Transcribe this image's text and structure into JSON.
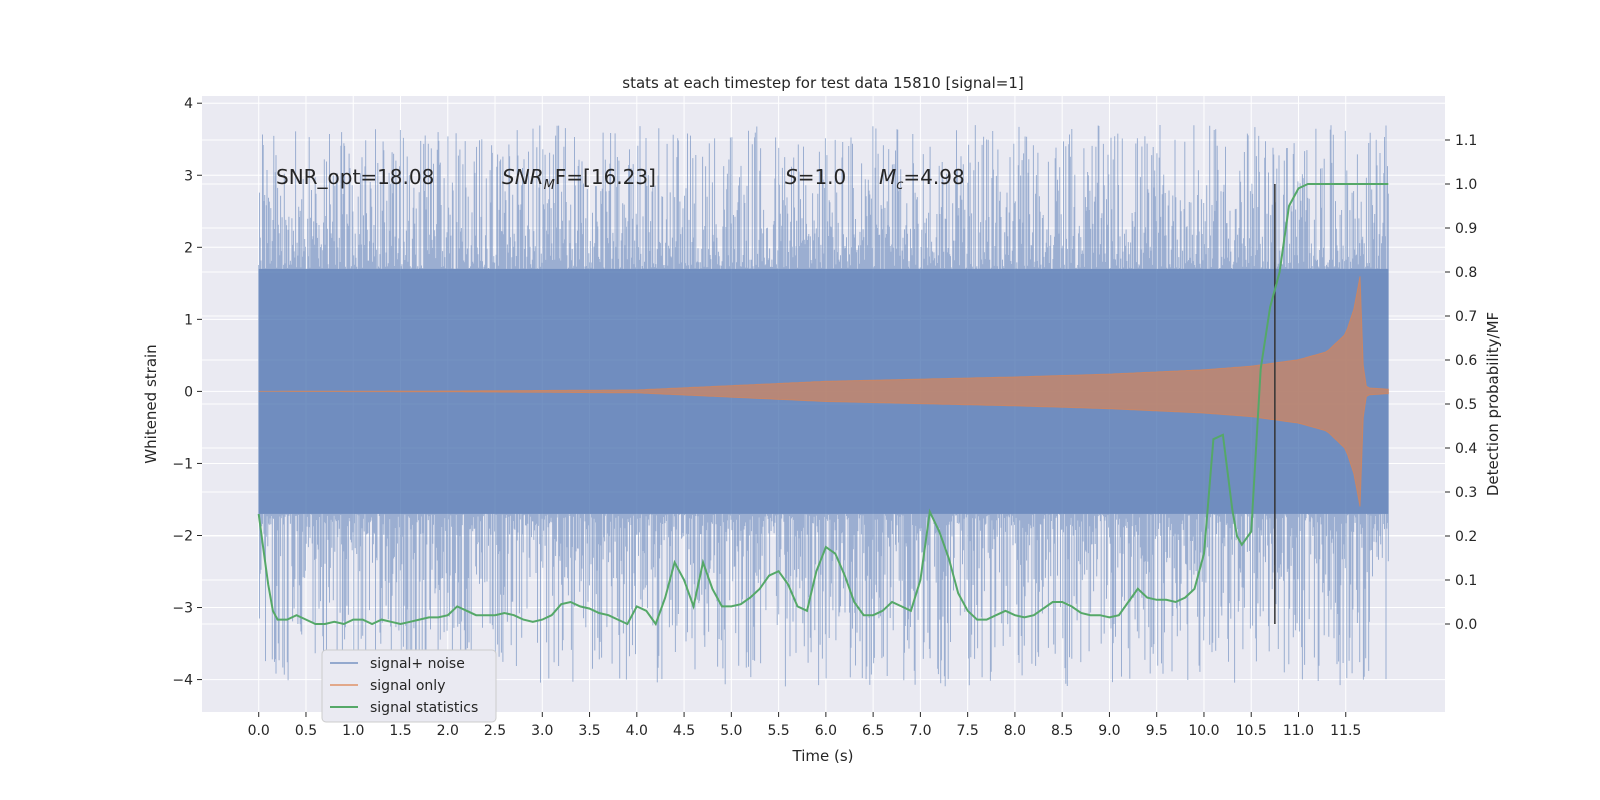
{
  "chart_data": {
    "type": "line",
    "title": "stats at each timestep for test data 15810 [signal=1]",
    "xlabel": "Time (s)",
    "ylabel": "Whitened strain",
    "ylabel_right": "Detection probability/MF",
    "xlim": [
      -0.6,
      12.55
    ],
    "ylim": [
      -4.45,
      4.1
    ],
    "ylim_right": [
      -0.2,
      1.2
    ],
    "x_ticks": [
      0.0,
      0.5,
      1.0,
      1.5,
      2.0,
      2.5,
      3.0,
      3.5,
      4.0,
      4.5,
      5.0,
      5.5,
      6.0,
      6.5,
      7.0,
      7.5,
      8.0,
      8.5,
      9.0,
      9.5,
      10.0,
      10.5,
      11.0,
      11.5
    ],
    "x_tick_labels": [
      "0.0",
      "0.5",
      "1.0",
      "1.5",
      "2.0",
      "2.5",
      "3.0",
      "3.5",
      "4.0",
      "4.5",
      "5.0",
      "5.5",
      "6.0",
      "6.5",
      "7.0",
      "7.5",
      "8.0",
      "8.5",
      "9.0",
      "9.5",
      "10.0",
      "10.5",
      "11.0",
      "11.5"
    ],
    "y_ticks": [
      -4,
      -3,
      -2,
      -1,
      0,
      1,
      2,
      3,
      4
    ],
    "y_tick_labels": [
      "−4",
      "−3",
      "−2",
      "−1",
      "0",
      "1",
      "2",
      "3",
      "4"
    ],
    "y2_ticks": [
      0.0,
      0.1,
      0.2,
      0.3,
      0.4,
      0.5,
      0.6,
      0.7,
      0.8,
      0.9,
      1.0,
      1.1
    ],
    "y2_tick_labels": [
      "0.0",
      "0.1",
      "0.2",
      "0.3",
      "0.4",
      "0.5",
      "0.6",
      "0.7",
      "0.8",
      "0.9",
      "1.0",
      "1.1"
    ],
    "grid": true,
    "legend_position": "lower-left",
    "colors": {
      "plot_bg": "#eaeaf2",
      "grid": "#ffffff",
      "signal_noise": "#4c72b0",
      "signal_only": "#dd8452",
      "statistics": "#55a868",
      "marker": "#333333"
    },
    "series": [
      {
        "name": "signal+ noise",
        "axis": "left",
        "x_range": [
          0.0,
          11.95
        ],
        "core_amplitude": 1.7,
        "peak_max": 3.7,
        "peak_min": -4.1
      },
      {
        "name": "signal only",
        "axis": "left",
        "x": [
          0.0,
          2.0,
          4.0,
          5.0,
          6.0,
          7.0,
          8.0,
          9.0,
          10.0,
          10.5,
          11.0,
          11.3,
          11.5,
          11.6,
          11.65,
          11.68,
          11.72,
          11.95
        ],
        "envelope": [
          0.0,
          0.005,
          0.02,
          0.08,
          0.14,
          0.17,
          0.2,
          0.24,
          0.3,
          0.35,
          0.44,
          0.55,
          0.8,
          1.2,
          1.65,
          0.4,
          0.05,
          0.03
        ]
      },
      {
        "name": "signal statistics",
        "axis": "right",
        "x": [
          0.0,
          0.05,
          0.1,
          0.15,
          0.2,
          0.3,
          0.4,
          0.5,
          0.6,
          0.7,
          0.8,
          0.9,
          1.0,
          1.1,
          1.2,
          1.3,
          1.4,
          1.5,
          1.6,
          1.7,
          1.8,
          1.9,
          2.0,
          2.1,
          2.2,
          2.3,
          2.4,
          2.5,
          2.6,
          2.7,
          2.8,
          2.9,
          3.0,
          3.1,
          3.2,
          3.3,
          3.4,
          3.5,
          3.6,
          3.7,
          3.8,
          3.9,
          4.0,
          4.1,
          4.2,
          4.3,
          4.4,
          4.5,
          4.6,
          4.7,
          4.8,
          4.9,
          5.0,
          5.1,
          5.2,
          5.3,
          5.4,
          5.5,
          5.6,
          5.7,
          5.8,
          5.9,
          6.0,
          6.1,
          6.2,
          6.3,
          6.4,
          6.5,
          6.6,
          6.7,
          6.8,
          6.9,
          7.0,
          7.1,
          7.2,
          7.3,
          7.4,
          7.5,
          7.6,
          7.7,
          7.8,
          7.9,
          8.0,
          8.1,
          8.2,
          8.3,
          8.4,
          8.5,
          8.6,
          8.7,
          8.8,
          8.9,
          9.0,
          9.1,
          9.2,
          9.3,
          9.4,
          9.5,
          9.6,
          9.7,
          9.8,
          9.9,
          10.0,
          10.1,
          10.2,
          10.3,
          10.35,
          10.4,
          10.5,
          10.6,
          10.7,
          10.8,
          10.9,
          11.0,
          11.1,
          11.2,
          11.4,
          11.6,
          11.8,
          11.95
        ],
        "values": [
          0.25,
          0.17,
          0.09,
          0.03,
          0.01,
          0.01,
          0.02,
          0.01,
          0.0,
          0.0,
          0.005,
          0.0,
          0.01,
          0.01,
          0.0,
          0.01,
          0.005,
          0.0,
          0.005,
          0.01,
          0.015,
          0.015,
          0.02,
          0.04,
          0.03,
          0.02,
          0.02,
          0.02,
          0.025,
          0.02,
          0.01,
          0.005,
          0.01,
          0.02,
          0.045,
          0.05,
          0.04,
          0.035,
          0.025,
          0.02,
          0.01,
          0.0,
          0.04,
          0.03,
          0.0,
          0.06,
          0.14,
          0.1,
          0.04,
          0.14,
          0.08,
          0.04,
          0.04,
          0.045,
          0.06,
          0.08,
          0.11,
          0.12,
          0.09,
          0.04,
          0.03,
          0.12,
          0.175,
          0.16,
          0.11,
          0.05,
          0.02,
          0.02,
          0.03,
          0.05,
          0.04,
          0.03,
          0.1,
          0.255,
          0.21,
          0.15,
          0.07,
          0.03,
          0.01,
          0.01,
          0.02,
          0.03,
          0.02,
          0.015,
          0.02,
          0.035,
          0.05,
          0.05,
          0.04,
          0.025,
          0.02,
          0.02,
          0.015,
          0.02,
          0.05,
          0.08,
          0.06,
          0.055,
          0.055,
          0.05,
          0.06,
          0.08,
          0.16,
          0.42,
          0.43,
          0.26,
          0.2,
          0.18,
          0.21,
          0.58,
          0.72,
          0.8,
          0.95,
          0.99,
          1.0,
          1.0,
          1.0,
          1.0,
          1.0,
          1.0
        ]
      }
    ],
    "marker_line_x": 10.75,
    "annotations": {
      "snr_opt": "SNR_opt=18.08",
      "snr_mf_base": "SNR",
      "snr_mf_sub": "M",
      "snr_mf_tail": "F=[16.23]",
      "s_sym": "S",
      "s_val": "=1.0",
      "mc_sym": "M",
      "mc_sub": "c",
      "mc_val": "=4.98"
    }
  }
}
